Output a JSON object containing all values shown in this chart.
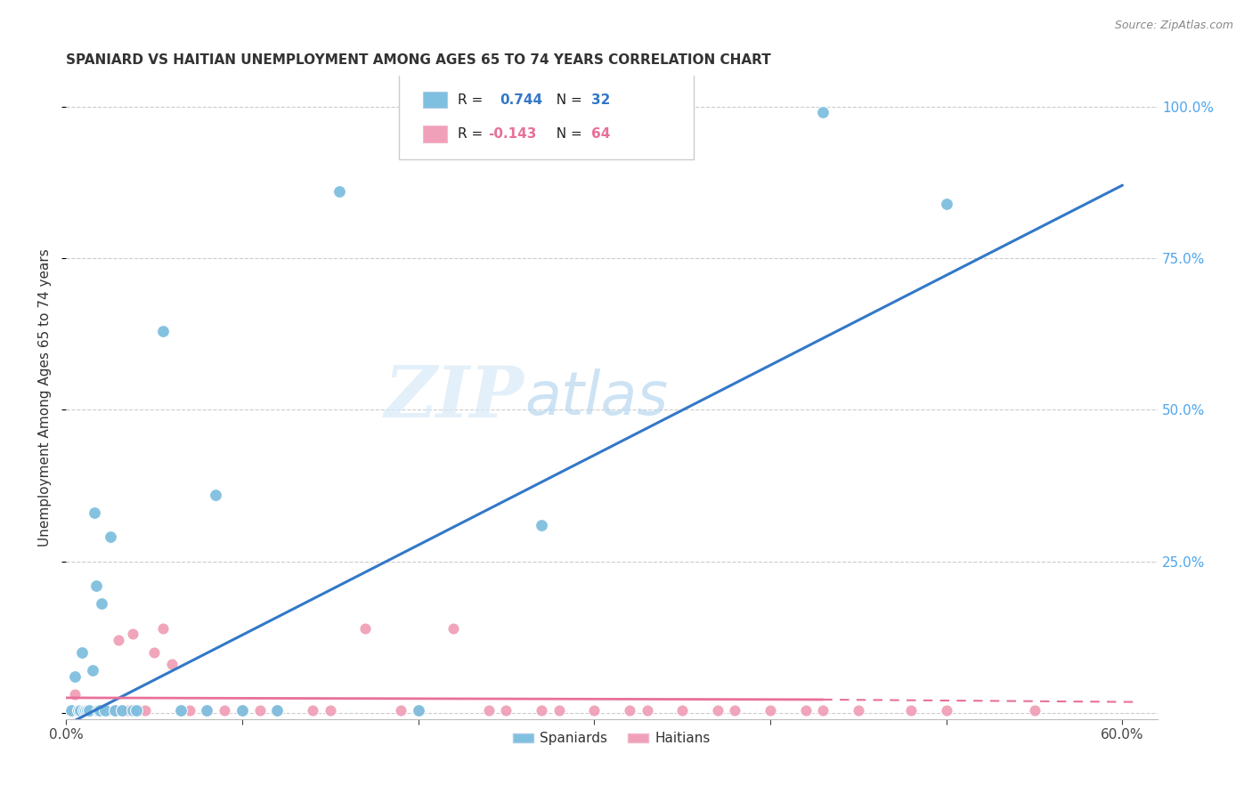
{
  "title": "SPANIARD VS HAITIAN UNEMPLOYMENT AMONG AGES 65 TO 74 YEARS CORRELATION CHART",
  "source": "Source: ZipAtlas.com",
  "ylabel": "Unemployment Among Ages 65 to 74 years",
  "xlim": [
    0.0,
    0.62
  ],
  "ylim": [
    -0.01,
    1.05
  ],
  "xticks": [
    0.0,
    0.1,
    0.2,
    0.3,
    0.4,
    0.5,
    0.6
  ],
  "xticklabels": [
    "0.0%",
    "",
    "",
    "",
    "",
    "",
    "60.0%"
  ],
  "yticks": [
    0.0,
    0.25,
    0.5,
    0.75,
    1.0
  ],
  "yticklabels": [
    "",
    "25.0%",
    "50.0%",
    "75.0%",
    "100.0%"
  ],
  "spaniards_x": [
    0.003,
    0.005,
    0.007,
    0.008,
    0.009,
    0.01,
    0.011,
    0.012,
    0.013,
    0.015,
    0.016,
    0.017,
    0.018,
    0.019,
    0.02,
    0.022,
    0.025,
    0.028,
    0.032,
    0.038,
    0.04,
    0.055,
    0.065,
    0.08,
    0.085,
    0.1,
    0.12,
    0.155,
    0.2,
    0.27,
    0.43,
    0.5
  ],
  "spaniards_y": [
    0.005,
    0.06,
    0.005,
    0.005,
    0.1,
    0.005,
    0.005,
    0.005,
    0.005,
    0.07,
    0.33,
    0.21,
    0.005,
    0.005,
    0.18,
    0.005,
    0.29,
    0.005,
    0.005,
    0.005,
    0.005,
    0.63,
    0.005,
    0.005,
    0.36,
    0.005,
    0.005,
    0.86,
    0.005,
    0.31,
    0.99,
    0.84
  ],
  "haitians_x": [
    0.003,
    0.004,
    0.005,
    0.006,
    0.007,
    0.008,
    0.009,
    0.01,
    0.011,
    0.012,
    0.013,
    0.014,
    0.015,
    0.016,
    0.017,
    0.018,
    0.019,
    0.02,
    0.022,
    0.024,
    0.025,
    0.027,
    0.028,
    0.03,
    0.032,
    0.034,
    0.035,
    0.038,
    0.04,
    0.042,
    0.045,
    0.05,
    0.055,
    0.06,
    0.065,
    0.07,
    0.08,
    0.09,
    0.1,
    0.11,
    0.12,
    0.14,
    0.15,
    0.17,
    0.19,
    0.2,
    0.22,
    0.24,
    0.25,
    0.27,
    0.28,
    0.3,
    0.32,
    0.33,
    0.35,
    0.37,
    0.38,
    0.4,
    0.42,
    0.43,
    0.45,
    0.48,
    0.5,
    0.55
  ],
  "haitians_y": [
    0.005,
    0.005,
    0.03,
    0.005,
    0.005,
    0.005,
    0.005,
    0.005,
    0.005,
    0.005,
    0.005,
    0.005,
    0.005,
    0.005,
    0.005,
    0.005,
    0.005,
    0.005,
    0.005,
    0.005,
    0.005,
    0.005,
    0.005,
    0.12,
    0.005,
    0.005,
    0.005,
    0.13,
    0.005,
    0.005,
    0.005,
    0.1,
    0.14,
    0.08,
    0.005,
    0.005,
    0.005,
    0.005,
    0.005,
    0.005,
    0.005,
    0.005,
    0.005,
    0.14,
    0.005,
    0.005,
    0.14,
    0.005,
    0.005,
    0.005,
    0.005,
    0.005,
    0.005,
    0.005,
    0.005,
    0.005,
    0.005,
    0.005,
    0.005,
    0.005,
    0.005,
    0.005,
    0.005,
    0.005
  ],
  "spaniard_color": "#7fbfdf",
  "haitian_color": "#f0a0b8",
  "spaniard_line_color": "#3378c8",
  "haitian_line_color": "#e8709a",
  "haitian_line_solid_end": 0.43,
  "legend_r_spaniard": "R =  0.744",
  "legend_n_spaniard": "N = 32",
  "legend_r_haitian": "R = -0.143",
  "legend_n_haitian": "N = 64",
  "watermark_zip": "ZIP",
  "watermark_atlas": "atlas",
  "background_color": "#ffffff",
  "grid_color": "#cccccc"
}
